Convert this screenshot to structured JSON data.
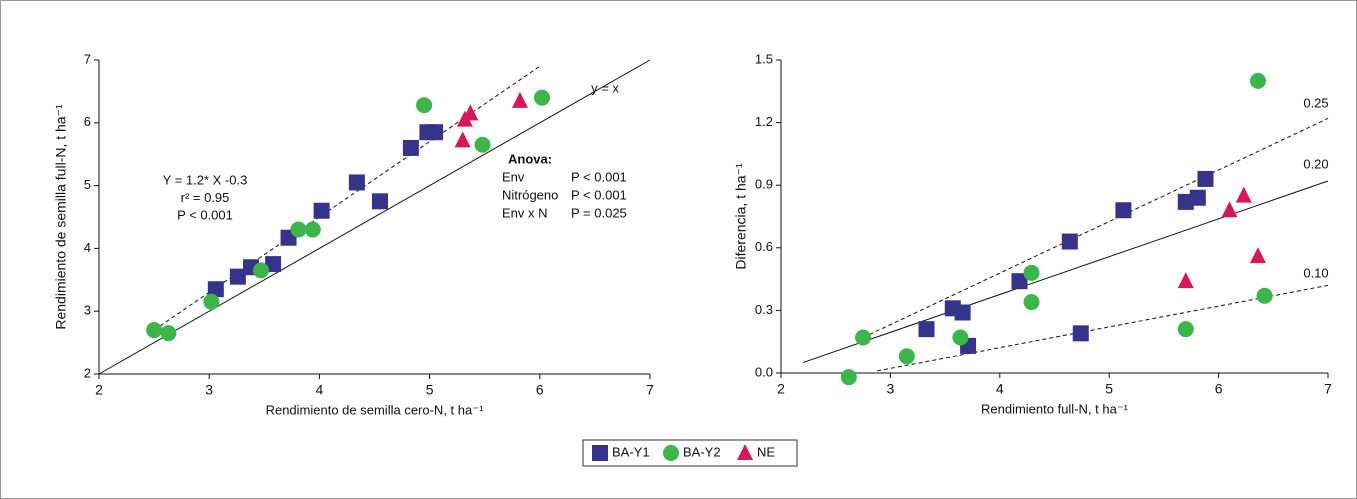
{
  "chart_data": [
    {
      "type": "scatter",
      "x_label": "Rendimiento de semilla cero-N, t ha⁻¹",
      "y_label": "Rendimiento de semilla full-N, t ha⁻¹",
      "xlim": [
        2,
        7
      ],
      "xticks": [
        2,
        3,
        4,
        5,
        6,
        7
      ],
      "ylim": [
        2,
        7
      ],
      "yticks": [
        2,
        3,
        4,
        5,
        6,
        7
      ],
      "series": [
        {
          "name": "BA-Y1",
          "color": "#35338a",
          "marker": "square",
          "x": [
            3.06,
            3.26,
            3.38,
            3.58,
            3.72,
            4.02,
            4.34,
            4.55,
            4.83,
            4.98,
            5.05
          ],
          "values": [
            3.35,
            3.55,
            3.7,
            3.75,
            4.17,
            4.6,
            5.05,
            4.75,
            5.6,
            5.85,
            5.85
          ]
        },
        {
          "name": "BA-Y2",
          "color": "#3cb54a",
          "marker": "circle",
          "x": [
            2.5,
            2.63,
            3.02,
            3.47,
            3.81,
            3.94,
            4.95,
            5.48,
            6.02
          ],
          "values": [
            2.7,
            2.65,
            3.15,
            3.65,
            4.3,
            4.3,
            6.28,
            5.65,
            6.4
          ]
        },
        {
          "name": "NE",
          "color": "#d6185b",
          "marker": "triangle",
          "x": [
            5.3,
            5.32,
            5.37,
            5.82
          ],
          "values": [
            5.72,
            6.05,
            6.15,
            6.35
          ]
        }
      ],
      "lines": [
        {
          "x": [
            2,
            7
          ],
          "y": [
            2,
            7
          ],
          "style": "solid",
          "label": "y = x"
        },
        {
          "x": [
            2.45,
            6.0
          ],
          "y": [
            2.64,
            6.9
          ],
          "style": "dashed"
        }
      ],
      "annotations": [
        "Y = 1.2* X -0.3",
        "r² = 0.95",
        "P < 0.001"
      ],
      "anova": {
        "title": "Anova:",
        "rows": [
          [
            "Env",
            "P < 0.001"
          ],
          [
            "Nitrógeno",
            "P < 0.001"
          ],
          [
            "Env x N",
            "P = 0.025"
          ]
        ]
      }
    },
    {
      "type": "scatter",
      "x_label": "Rendimiento full-N, t ha⁻¹",
      "y_label": "Diferencia, t ha⁻¹",
      "xlim": [
        2,
        7
      ],
      "xticks": [
        2,
        3,
        4,
        5,
        6,
        7
      ],
      "ylim": [
        0,
        1.5
      ],
      "yticks": [
        {
          "value": 0,
          "label": "0.0"
        },
        {
          "value": 0.3,
          "label": "0.3"
        },
        {
          "value": 0.6,
          "label": "0.6"
        },
        {
          "value": 0.9,
          "label": "0.9"
        },
        {
          "value": 1.2,
          "label": "1.2"
        },
        {
          "value": 1.5,
          "label": "1.5"
        }
      ],
      "series": [
        {
          "name": "BA-Y1",
          "color": "#35338a",
          "marker": "square",
          "x": [
            3.33,
            3.57,
            3.66,
            3.71,
            4.18,
            4.64,
            4.74,
            5.13,
            5.7,
            5.81,
            5.88
          ],
          "values": [
            0.21,
            0.31,
            0.29,
            0.13,
            0.44,
            0.63,
            0.19,
            0.78,
            0.82,
            0.84,
            0.93
          ]
        },
        {
          "name": "BA-Y2",
          "color": "#3cb54a",
          "marker": "circle",
          "x": [
            2.75,
            2.62,
            3.15,
            3.64,
            4.29,
            4.29,
            5.7,
            6.42,
            6.36
          ],
          "values": [
            0.17,
            -0.02,
            0.08,
            0.17,
            0.48,
            0.34,
            0.21,
            0.37,
            1.4
          ]
        },
        {
          "name": "NE",
          "color": "#d6185b",
          "marker": "triangle",
          "x": [
            5.7,
            6.1,
            6.23,
            6.36
          ],
          "values": [
            0.44,
            0.78,
            0.85,
            0.56
          ]
        }
      ],
      "lines": [
        {
          "x": [
            2.75,
            7
          ],
          "y": [
            0.17,
            1.22
          ],
          "style": "dashed",
          "label": "0.25"
        },
        {
          "x": [
            2.2,
            7
          ],
          "y": [
            0.05,
            0.92
          ],
          "style": "solid",
          "label": "0.20"
        },
        {
          "x": [
            2.88,
            7
          ],
          "y": [
            0.01,
            0.42
          ],
          "style": "dashed",
          "label": "0.10"
        }
      ]
    }
  ]
}
